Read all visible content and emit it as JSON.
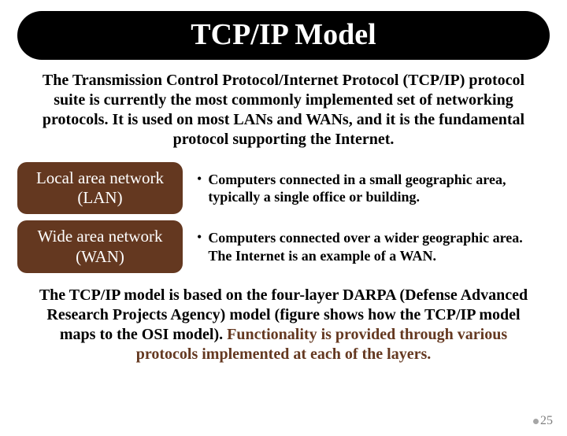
{
  "title": "TCP/IP Model",
  "intro": "The Transmission Control Protocol/Internet Protocol (TCP/IP) protocol suite is currently the most commonly implemented set of networking protocols. It is used on most LANs and WANs, and it is the fundamental protocol supporting the Internet.",
  "rows": [
    {
      "label": "Local area network (LAN)",
      "desc": "Computers connected in a small geographic area, typically a single office or building."
    },
    {
      "label": "Wide area network (WAN)",
      "desc": "Computers connected over a wider geographic area. The Internet is an example of a WAN."
    }
  ],
  "footer": {
    "plain": "The TCP/IP model is based on the four-layer DARPA  (Defense Advanced Research Projects Agency)  model (figure shows how the TCP/IP model maps to the OSI model).  ",
    "accent": "Functionality is provided through various protocols implemented at each of the layers."
  },
  "page_number": "25",
  "colors": {
    "title_bg": "#000000",
    "title_text": "#ffffff",
    "row_left_bg": "#643820",
    "row_left_text": "#ffffff",
    "block_bg": "#ffffff",
    "body_text": "#000000",
    "accent_text": "#643820",
    "page_num_text": "#7f7f7f",
    "page_dot": "#a6a6a6"
  },
  "typography": {
    "title_fontsize": 38,
    "intro_fontsize": 20,
    "row_label_fontsize": 21,
    "row_desc_fontsize": 18,
    "footer_fontsize": 20,
    "page_num_fontsize": 16,
    "font_family": "Times New Roman"
  },
  "layout": {
    "title_radius": 32,
    "block_radius": 32,
    "row_radius": 12,
    "row_left_width": 210
  }
}
